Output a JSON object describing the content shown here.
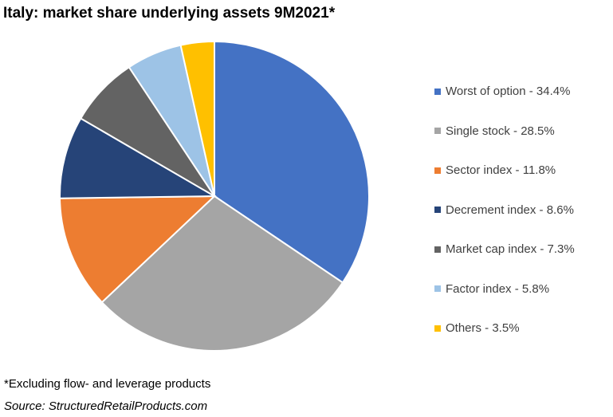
{
  "chart_data": {
    "type": "pie",
    "title": "Italy: market share underlying assets 9M2021*",
    "categories": [
      "Worst of option",
      "Single stock",
      "Sector index",
      "Decrement index",
      "Market cap index",
      "Factor index",
      "Others"
    ],
    "values": [
      34.4,
      28.5,
      11.8,
      8.6,
      7.3,
      5.8,
      3.5
    ],
    "legend_labels": [
      "Worst of option - 34.4%",
      "Single stock - 28.5%",
      "Sector index - 11.8%",
      "Decrement index - 8.6%",
      "Market cap index - 7.3%",
      "Factor index - 5.8%",
      "Others - 3.5%"
    ],
    "colors": [
      "#4472C4",
      "#A5A5A5",
      "#ED7D31",
      "#264478",
      "#636363",
      "#9DC3E6",
      "#FFC000"
    ],
    "legend_position": "right"
  },
  "footnote": "*Excluding flow- and leverage products",
  "source": "Source: StructuredRetailProducts.com"
}
